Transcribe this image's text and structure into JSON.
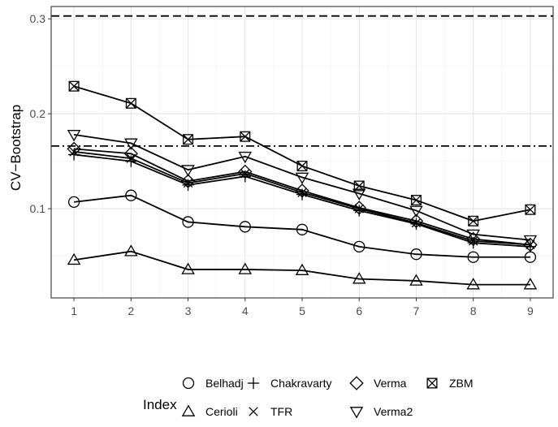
{
  "chart_data": {
    "type": "line",
    "title": "",
    "xlabel": "",
    "ylabel": "CV−Bootstrap",
    "x": [
      1,
      2,
      3,
      4,
      5,
      6,
      7,
      8,
      9
    ],
    "xlim": [
      0.6,
      9.4
    ],
    "ylim": [
      0.006,
      0.313
    ],
    "x_ticks": [
      "1",
      "2",
      "3",
      "4",
      "5",
      "6",
      "7",
      "8",
      "9"
    ],
    "y_ticks": [
      0.1,
      0.2,
      0.3
    ],
    "y_tick_labels": [
      "0.1",
      "0.2",
      "0.3"
    ],
    "grid": true,
    "legend_position": "bottom",
    "legend_title": "Index",
    "reference_lines": [
      {
        "style": "dashed",
        "y": 0.303
      },
      {
        "style": "dotdash",
        "y": 0.166
      }
    ],
    "series": [
      {
        "name": "Belhadj",
        "marker": "circle",
        "values": [
          0.107,
          0.114,
          0.086,
          0.081,
          0.078,
          0.06,
          0.052,
          0.049,
          0.049
        ]
      },
      {
        "name": "Cerioli",
        "marker": "triangle-up",
        "values": [
          0.046,
          0.055,
          0.036,
          0.036,
          0.035,
          0.026,
          0.024,
          0.02,
          0.02
        ]
      },
      {
        "name": "Chakravarty",
        "marker": "plus",
        "values": [
          0.157,
          0.15,
          0.125,
          0.134,
          0.115,
          0.098,
          0.084,
          0.064,
          0.06
        ]
      },
      {
        "name": "TFR",
        "marker": "cross",
        "values": [
          0.16,
          0.153,
          0.127,
          0.137,
          0.117,
          0.1,
          0.085,
          0.066,
          0.062
        ]
      },
      {
        "name": "Verma",
        "marker": "diamond",
        "values": [
          0.163,
          0.158,
          0.129,
          0.139,
          0.119,
          0.101,
          0.087,
          0.068,
          0.062
        ]
      },
      {
        "name": "Verma2",
        "marker": "triangle-down",
        "values": [
          0.178,
          0.169,
          0.141,
          0.155,
          0.133,
          0.116,
          0.098,
          0.073,
          0.067
        ]
      },
      {
        "name": "ZBM",
        "marker": "square-x",
        "values": [
          0.229,
          0.211,
          0.173,
          0.176,
          0.145,
          0.124,
          0.109,
          0.087,
          0.099
        ]
      }
    ],
    "legend_rows": [
      [
        "Belhadj",
        "Chakravarty",
        "Verma",
        "ZBM"
      ],
      [
        "Cerioli",
        "TFR",
        "Verma2"
      ]
    ]
  }
}
